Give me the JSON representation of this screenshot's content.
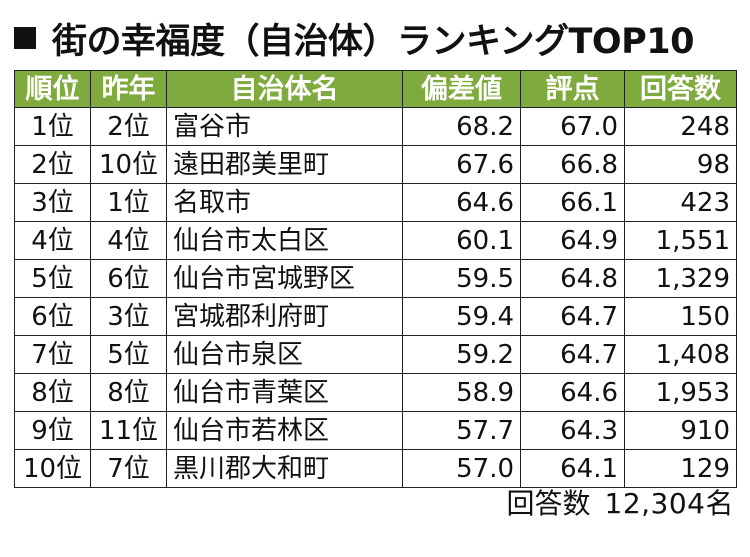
{
  "title": "街の幸福度（自治体）ランキングTOP10",
  "table": {
    "headers": [
      "順位",
      "昨年",
      "自治体名",
      "偏差値",
      "評点",
      "回答数"
    ],
    "rows": [
      [
        "1位",
        "2位",
        "富谷市",
        "68.2",
        "67.0",
        "248"
      ],
      [
        "2位",
        "10位",
        "遠田郡美里町",
        "67.6",
        "66.8",
        "98"
      ],
      [
        "3位",
        "1位",
        "名取市",
        "64.6",
        "66.1",
        "423"
      ],
      [
        "4位",
        "4位",
        "仙台市太白区",
        "60.1",
        "64.9",
        "1,551"
      ],
      [
        "5位",
        "6位",
        "仙台市宮城野区",
        "59.5",
        "64.8",
        "1,329"
      ],
      [
        "6位",
        "3位",
        "宮城郡利府町",
        "59.4",
        "64.7",
        "150"
      ],
      [
        "7位",
        "5位",
        "仙台市泉区",
        "59.2",
        "64.7",
        "1,408"
      ],
      [
        "8位",
        "8位",
        "仙台市青葉区",
        "58.9",
        "64.6",
        "1,953"
      ],
      [
        "9位",
        "11位",
        "仙台市若林区",
        "57.7",
        "64.3",
        "910"
      ],
      [
        "10位",
        "7位",
        "黒川郡大和町",
        "57.0",
        "64.1",
        "129"
      ]
    ]
  },
  "footer": {
    "label": "回答数",
    "value": "12,304名"
  },
  "colors": {
    "header_bg": "#7faa3e",
    "header_text": "#ffffff",
    "border": "#222222"
  }
}
